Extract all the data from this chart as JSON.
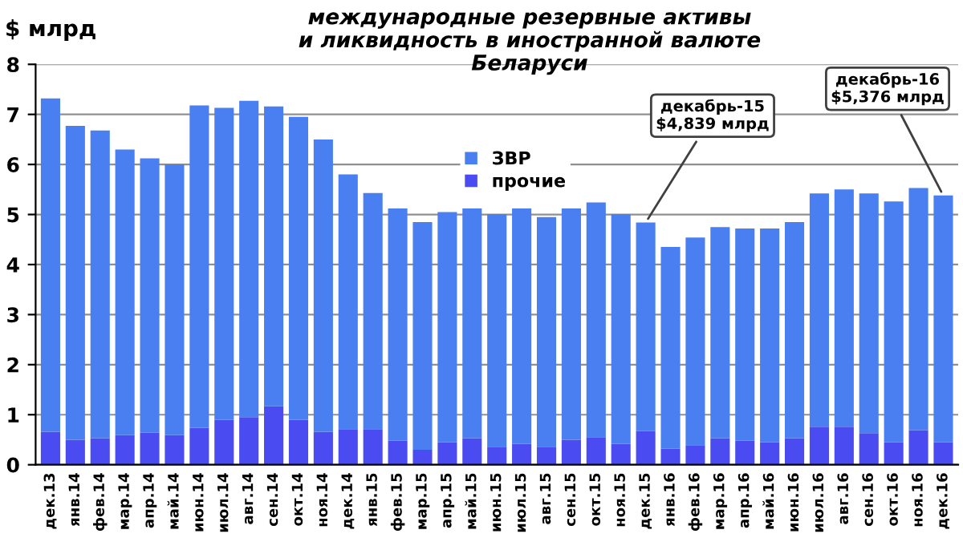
{
  "chart_data": {
    "type": "bar",
    "stacked": true,
    "title": "международные резервные активы\nи ликвидность в иностранной валюте\nБеларуси",
    "ylabel": "$ млрд",
    "categories": [
      "дек.13",
      "янв.14",
      "фев.14",
      "мар.14",
      "апр.14",
      "май.14",
      "июн.14",
      "июл.14",
      "авг.14",
      "сен.14",
      "окт.14",
      "ноя.14",
      "дек.14",
      "янв.15",
      "фев.15",
      "мар.15",
      "апр.15",
      "май.15",
      "июн.15",
      "июл.15",
      "авг.15",
      "сен.15",
      "окт.15",
      "ноя.15",
      "дек.15",
      "янв.16",
      "фев.16",
      "мар.16",
      "апр.16",
      "май.16",
      "июн.16",
      "июл.16",
      "авг.16",
      "сен.16",
      "окт.16",
      "ноя.16",
      "дек.16"
    ],
    "series": [
      {
        "name": "прочие",
        "color": "#4b4bf2",
        "values": [
          0.66,
          0.5,
          0.53,
          0.59,
          0.64,
          0.59,
          0.74,
          0.9,
          0.95,
          1.17,
          0.9,
          0.66,
          0.71,
          0.71,
          0.48,
          0.3,
          0.45,
          0.53,
          0.36,
          0.42,
          0.36,
          0.5,
          0.55,
          0.42,
          0.67,
          0.32,
          0.39,
          0.53,
          0.48,
          0.45,
          0.53,
          0.76,
          0.76,
          0.63,
          0.45,
          0.69,
          0.45
        ]
      },
      {
        "name": "ЗВР",
        "color": "#4a7ff2",
        "values": [
          6.66,
          6.27,
          6.15,
          5.71,
          5.48,
          5.41,
          6.44,
          6.23,
          6.32,
          5.99,
          6.05,
          5.84,
          5.09,
          4.72,
          4.64,
          4.55,
          4.6,
          4.59,
          4.65,
          4.7,
          4.59,
          4.62,
          4.69,
          4.59,
          4.17,
          4.03,
          4.15,
          4.22,
          4.24,
          4.27,
          4.32,
          4.66,
          4.74,
          4.79,
          4.81,
          4.84,
          4.93
        ]
      }
    ],
    "ylim": [
      0,
      8
    ],
    "yticks": [
      0,
      1,
      2,
      3,
      4,
      5,
      6,
      7,
      8
    ],
    "grid": "y",
    "legend": "top",
    "annotations": [
      {
        "text": "декабрь-15\n$4,839 млрд",
        "x": "дек.15",
        "y": 4.839
      },
      {
        "text": "декабрь-16\n$5,376 млрд",
        "x": "дек.16",
        "y": 5.376
      }
    ]
  }
}
